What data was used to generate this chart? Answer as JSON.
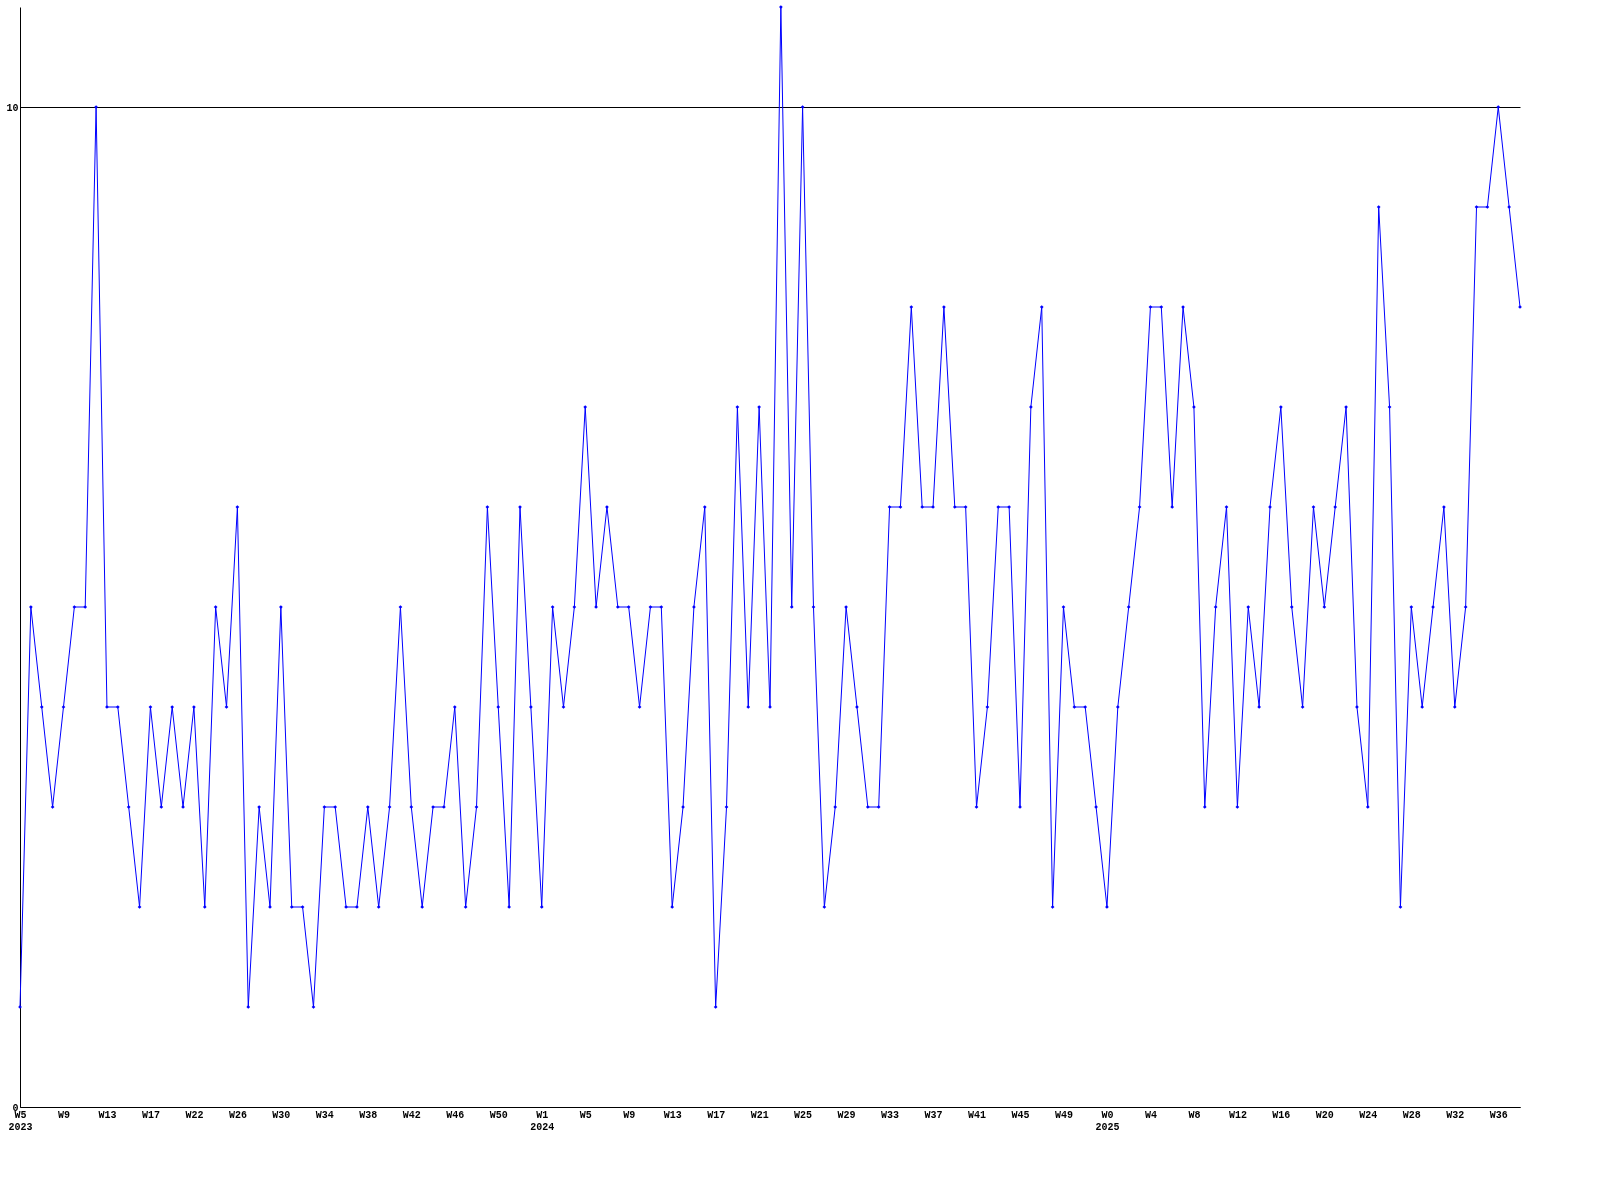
{
  "chart_data": {
    "type": "line",
    "categories": [
      "W5\n2023",
      null,
      null,
      null,
      "W9",
      null,
      null,
      null,
      "W13",
      null,
      null,
      null,
      "W17",
      null,
      null,
      null,
      "W22",
      null,
      null,
      null,
      "W26",
      null,
      null,
      null,
      "W30",
      null,
      null,
      null,
      "W34",
      null,
      null,
      null,
      "W38",
      null,
      null,
      null,
      "W42",
      null,
      null,
      null,
      "W46",
      null,
      null,
      null,
      "W50",
      null,
      null,
      null,
      "W1\n2024",
      null,
      null,
      null,
      "W5",
      null,
      null,
      null,
      "W9",
      null,
      null,
      null,
      "W13",
      null,
      null,
      null,
      "W17",
      null,
      null,
      null,
      "W21",
      null,
      null,
      null,
      "W25",
      null,
      null,
      null,
      "W29",
      null,
      null,
      null,
      "W33",
      null,
      null,
      null,
      "W37",
      null,
      null,
      null,
      "W41",
      null,
      null,
      null,
      "W45",
      null,
      null,
      null,
      "W49",
      null,
      null,
      null,
      "W0\n2025",
      null,
      null,
      null,
      "W4",
      null,
      null,
      null,
      "W8",
      null,
      null,
      null,
      "W12",
      null,
      null,
      null,
      "W16",
      null,
      null,
      null,
      "W20",
      null,
      null,
      null,
      "W24",
      null,
      null,
      null,
      "W28",
      null,
      null,
      null,
      "W32",
      null,
      null,
      null,
      "W36",
      null,
      null
    ],
    "values": [
      1,
      5,
      4,
      3,
      4,
      5,
      5,
      10,
      4,
      4,
      3,
      2,
      4,
      3,
      4,
      3,
      4,
      2,
      5,
      4,
      6,
      1,
      3,
      2,
      5,
      2,
      2,
      1,
      3,
      3,
      2,
      2,
      3,
      2,
      3,
      5,
      3,
      2,
      3,
      3,
      4,
      2,
      3,
      6,
      4,
      2,
      6,
      4,
      2,
      5,
      4,
      5,
      7,
      5,
      6,
      5,
      5,
      4,
      5,
      5,
      2,
      3,
      5,
      6,
      1,
      3,
      7,
      4,
      7,
      4,
      11,
      5,
      10,
      5,
      2,
      3,
      5,
      4,
      3,
      3,
      6,
      6,
      8,
      6,
      6,
      8,
      6,
      6,
      3,
      4,
      6,
      6,
      3,
      7,
      8,
      2,
      5,
      4,
      4,
      3,
      2,
      4,
      5,
      6,
      8,
      8,
      6,
      8,
      7,
      3,
      5,
      6,
      3,
      5,
      4,
      6,
      7,
      5,
      4,
      6,
      5,
      6,
      7,
      4,
      3,
      9,
      7,
      2,
      5,
      4,
      5,
      6,
      4,
      5,
      9,
      9,
      10,
      9,
      8
    ],
    "color": "#0000ff",
    "ylim": [
      0,
      11
    ],
    "yticks": [
      0,
      10
    ],
    "grid": "y",
    "marker": "diamond",
    "line_style": "solid"
  }
}
